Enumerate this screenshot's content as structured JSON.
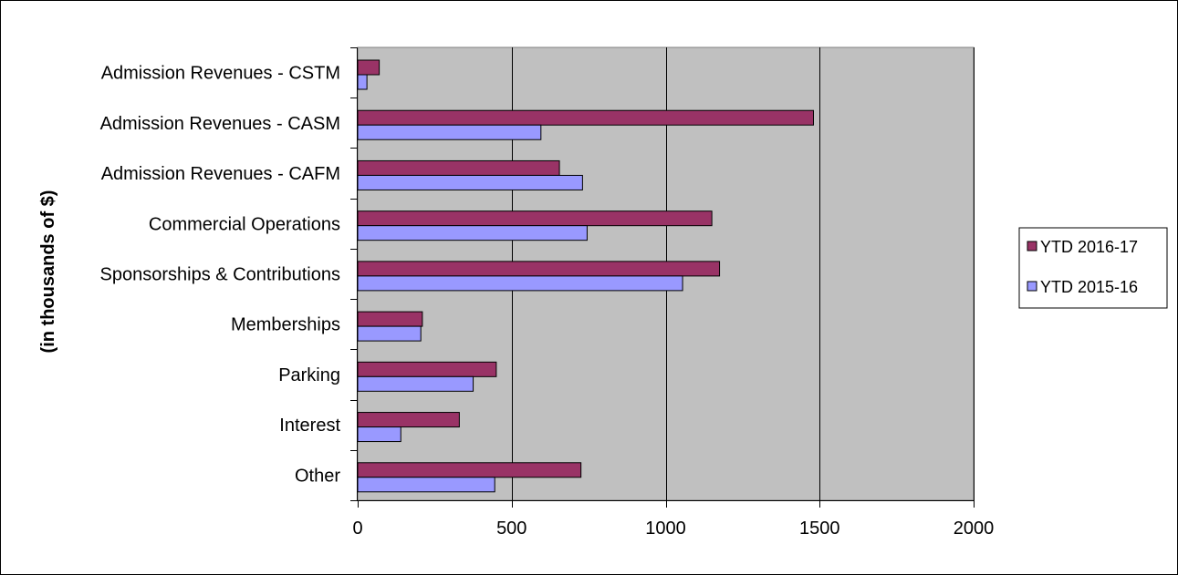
{
  "chart_data": {
    "type": "bar",
    "orientation": "horizontal",
    "title": "",
    "xlabel": "",
    "ylabel": "(in thousands of $)",
    "categories": [
      "Admission Revenues - CSTM",
      "Admission Revenues - CASM",
      "Admission Revenues - CAFM",
      "Commercial Operations",
      "Sponsorships & Contributions",
      "Memberships",
      "Parking",
      "Interest",
      "Other"
    ],
    "series": [
      {
        "name": "YTD 2016-17",
        "color": "#993366",
        "values": [
          70,
          1480,
          655,
          1150,
          1175,
          210,
          450,
          330,
          725
        ]
      },
      {
        "name": "YTD 2015-16",
        "color": "#9999ff",
        "values": [
          30,
          595,
          730,
          745,
          1055,
          205,
          375,
          140,
          445
        ]
      }
    ],
    "xlim": [
      0,
      2000
    ],
    "xticks": [
      0,
      500,
      1000,
      1500,
      2000
    ],
    "grid": "vertical",
    "legend": "right",
    "plot_background": "#c0c0c0"
  }
}
